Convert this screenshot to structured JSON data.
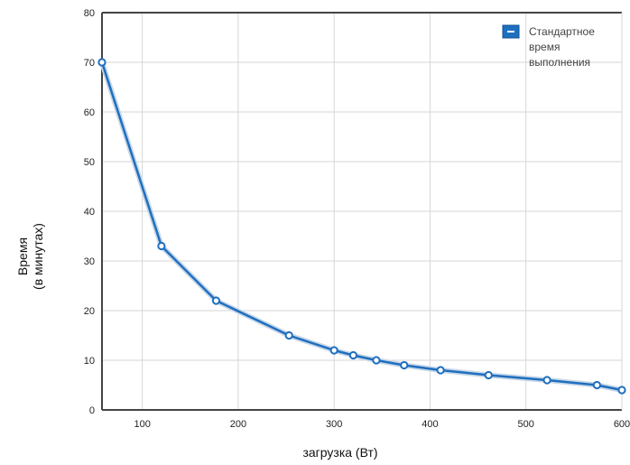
{
  "chart_data": {
    "type": "line",
    "xlabel": "загрузка (Вт)",
    "ylabel_lines": [
      "Время",
      "(в минутах)"
    ],
    "xlim": [
      58,
      600
    ],
    "ylim": [
      0,
      80
    ],
    "xticks": [
      100,
      200,
      300,
      400,
      500,
      600
    ],
    "yticks": [
      0,
      10,
      20,
      30,
      40,
      50,
      60,
      70,
      80
    ],
    "grid": true,
    "legend_position": "top-right",
    "legend_lines": [
      "Стандартное",
      "время",
      "выполнения"
    ],
    "series": [
      {
        "name": "Стандартное время выполнения",
        "color": "#1f6fbf",
        "x": [
          58,
          120,
          177,
          253,
          300,
          320,
          344,
          373,
          411,
          461,
          522,
          574,
          600
        ],
        "y": [
          70,
          33,
          22,
          15,
          12,
          11,
          10,
          9,
          8,
          7,
          6,
          5,
          4
        ]
      }
    ]
  }
}
